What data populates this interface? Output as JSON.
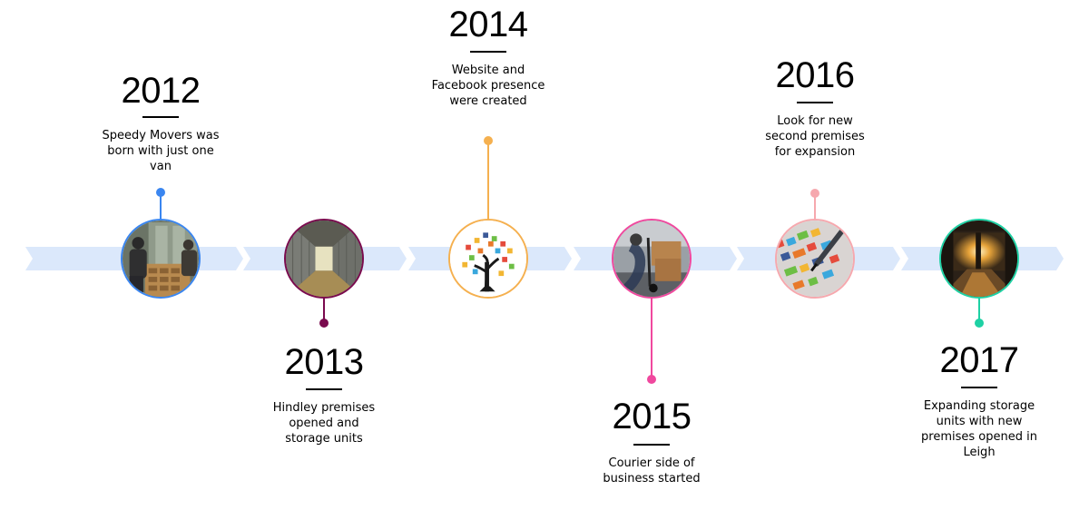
{
  "milestones": [
    {
      "year": "2012",
      "text": "Speedy Movers was born with just one van",
      "color": "#3a86f0",
      "image": "man-moving-furniture-icon"
    },
    {
      "year": "2013",
      "text": "Hindley premises opened and storage units",
      "color": "#7a0a4e",
      "image": "storage-corridor-icon"
    },
    {
      "year": "2014",
      "text": "Website and Facebook presence were created",
      "color": "#f5b04f",
      "image": "social-media-tree-icon"
    },
    {
      "year": "2015",
      "text": "Courier side of business started",
      "color": "#f0489e",
      "image": "courier-trolley-icon"
    },
    {
      "year": "2016",
      "text": "Look for new second premises for expansion",
      "color": "#f6a8ae",
      "image": "marketing-pen-icon"
    },
    {
      "year": "2017",
      "text": "Expanding storage units with new premises opened in Leigh",
      "color": "#1ed1a4",
      "image": "warehouse-sunlight-icon"
    }
  ],
  "band_color": "#dbe8fb"
}
